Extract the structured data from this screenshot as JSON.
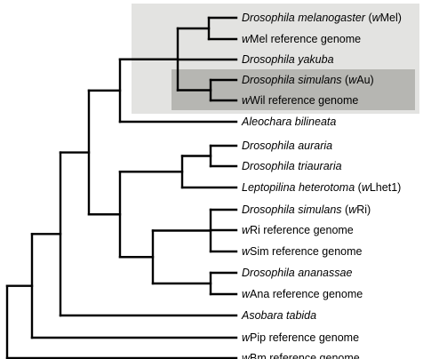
{
  "colors": {
    "outer_highlight": "#e3e3e1",
    "inner_highlight": "#b6b6b2",
    "branch": "#000000",
    "label": "#000000"
  },
  "leaves": [
    {
      "id": "mel",
      "parts": [
        {
          "t": "Drosophila melanogaster",
          "i": true
        },
        {
          "t": " (",
          "i": false
        },
        {
          "t": "w",
          "i": true
        },
        {
          "t": "Mel)",
          "i": false
        }
      ]
    },
    {
      "id": "mel-ref",
      "parts": [
        {
          "t": "w",
          "i": true
        },
        {
          "t": "Mel reference genome",
          "i": false
        }
      ]
    },
    {
      "id": "yak",
      "parts": [
        {
          "t": "Drosophila yakuba",
          "i": true
        }
      ]
    },
    {
      "id": "simau",
      "parts": [
        {
          "t": "Drosophila simulans",
          "i": true
        },
        {
          "t": " (",
          "i": false
        },
        {
          "t": "w",
          "i": true
        },
        {
          "t": "Au)",
          "i": false
        }
      ]
    },
    {
      "id": "wil-ref",
      "parts": [
        {
          "t": "w",
          "i": true
        },
        {
          "t": "Wil reference genome",
          "i": false
        }
      ]
    },
    {
      "id": "ale",
      "parts": [
        {
          "t": "Aleochara bilineata",
          "i": true
        }
      ]
    },
    {
      "id": "aur",
      "parts": [
        {
          "t": "Drosophila auraria",
          "i": true
        }
      ]
    },
    {
      "id": "tri",
      "parts": [
        {
          "t": "Drosophila triauraria",
          "i": true
        }
      ]
    },
    {
      "id": "lep",
      "parts": [
        {
          "t": "Leptopilina heterotoma",
          "i": true
        },
        {
          "t": " (",
          "i": false
        },
        {
          "t": "w",
          "i": true
        },
        {
          "t": "Lhet1)",
          "i": false
        }
      ]
    },
    {
      "id": "simri",
      "parts": [
        {
          "t": "Drosophila simulans",
          "i": true
        },
        {
          "t": " (",
          "i": false
        },
        {
          "t": "w",
          "i": true
        },
        {
          "t": "Ri)",
          "i": false
        }
      ]
    },
    {
      "id": "ri-ref",
      "parts": [
        {
          "t": "w",
          "i": true
        },
        {
          "t": "Ri reference genome",
          "i": false
        }
      ]
    },
    {
      "id": "sim-ref",
      "parts": [
        {
          "t": "w",
          "i": true
        },
        {
          "t": "Sim reference genome",
          "i": false
        }
      ]
    },
    {
      "id": "ana",
      "parts": [
        {
          "t": "Drosophila ananassae",
          "i": true
        }
      ]
    },
    {
      "id": "ana-ref",
      "parts": [
        {
          "t": "w",
          "i": true
        },
        {
          "t": "Ana reference genome",
          "i": false
        }
      ]
    },
    {
      "id": "asob",
      "parts": [
        {
          "t": "Asobara tabida",
          "i": true
        }
      ]
    },
    {
      "id": "pip-ref",
      "parts": [
        {
          "t": "w",
          "i": true
        },
        {
          "t": "Pip reference genome",
          "i": false
        }
      ]
    },
    {
      "id": "bm-ref",
      "parts": [
        {
          "t": "w",
          "i": true
        },
        {
          "t": "Bm reference genome",
          "i": false
        }
      ]
    }
  ]
}
